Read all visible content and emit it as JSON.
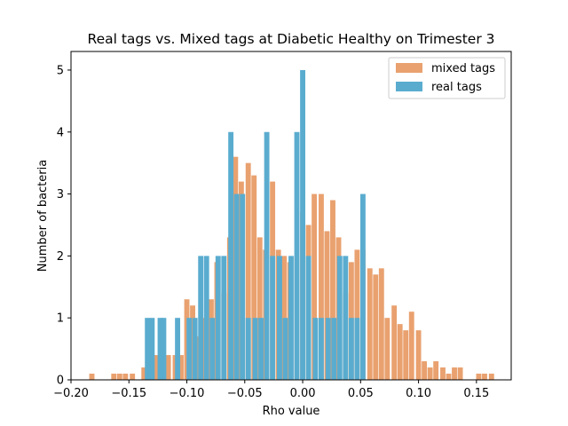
{
  "chart_data": {
    "type": "bar",
    "title": "Real tags vs. Mixed tags at Diabetic Healthy on Trimester 3",
    "xlabel": "Rho value",
    "ylabel": "Number of bacteria",
    "xlim": [
      -0.2,
      0.18
    ],
    "ylim": [
      0,
      5.3
    ],
    "xticks": [
      "−0.20",
      "−0.15",
      "−0.10",
      "−0.05",
      "0.00",
      "0.05",
      "0.10",
      "0.15"
    ],
    "xtick_values": [
      -0.2,
      -0.15,
      -0.1,
      -0.05,
      0.0,
      0.05,
      0.1,
      0.15
    ],
    "yticks": [
      "0",
      "1",
      "2",
      "3",
      "4",
      "5"
    ],
    "ytick_values": [
      0,
      1,
      2,
      3,
      4,
      5
    ],
    "bar_width": 0.0045,
    "legend_position": "top-right",
    "series": [
      {
        "name": "mixed tags",
        "color": "#e9a16f",
        "x": [
          -0.182,
          -0.163,
          -0.158,
          -0.153,
          -0.147,
          -0.142,
          -0.137,
          -0.132,
          -0.126,
          -0.121,
          -0.116,
          -0.11,
          -0.105,
          -0.1,
          -0.095,
          -0.089,
          -0.084,
          -0.079,
          -0.074,
          -0.068,
          -0.063,
          -0.058,
          -0.053,
          -0.047,
          -0.042,
          -0.037,
          -0.032,
          -0.026,
          -0.021,
          -0.016,
          -0.011,
          -0.005,
          0.0,
          0.005,
          0.01,
          0.016,
          0.021,
          0.026,
          0.031,
          0.037,
          0.042,
          0.047,
          0.052,
          0.058,
          0.063,
          0.068,
          0.073,
          0.079,
          0.084,
          0.089,
          0.094,
          0.1,
          0.105,
          0.11,
          0.115,
          0.121,
          0.126,
          0.131,
          0.136,
          0.142,
          0.147,
          0.152,
          0.157,
          0.163,
          0.168
        ],
        "values": [
          0.1,
          0.1,
          0.1,
          0.1,
          0.1,
          0.0,
          0.2,
          0.5,
          0.4,
          0.4,
          0.4,
          0.4,
          0.4,
          1.3,
          1.2,
          0.7,
          1.0,
          1.3,
          1.9,
          1.4,
          2.3,
          3.6,
          3.2,
          3.5,
          3.3,
          2.3,
          2.1,
          3.2,
          2.1,
          2.0,
          1.9,
          2.0,
          2.7,
          2.5,
          3.0,
          3.0,
          2.4,
          2.9,
          2.3,
          1.4,
          1.9,
          2.1,
          2.1,
          1.8,
          1.7,
          1.8,
          1.0,
          1.2,
          0.9,
          0.8,
          1.1,
          0.8,
          0.3,
          0.2,
          0.3,
          0.2,
          0.1,
          0.2,
          0.2,
          0.0,
          0.0,
          0.1,
          0.1,
          0.1,
          0.0
        ]
      },
      {
        "name": "real tags",
        "color": "#5aaccf",
        "x": [
          -0.134,
          -0.123,
          -0.108,
          -0.098,
          -0.088,
          -0.073,
          -0.062,
          -0.052,
          -0.041,
          -0.031,
          -0.02,
          -0.01,
          0.0,
          0.011,
          0.022,
          0.032,
          0.042,
          0.052
        ],
        "values": [
          1,
          1,
          1,
          1,
          2,
          2,
          4,
          3,
          1,
          4,
          2,
          2,
          5,
          1,
          1,
          2,
          1,
          3
        ]
      }
    ],
    "extra_real": [
      {
        "x": -0.13,
        "v": 1
      },
      {
        "x": -0.12,
        "v": 1
      },
      {
        "x": -0.093,
        "v": 1
      },
      {
        "x": -0.083,
        "v": 2
      },
      {
        "x": -0.078,
        "v": 1
      },
      {
        "x": -0.068,
        "v": 2
      },
      {
        "x": -0.057,
        "v": 3
      },
      {
        "x": -0.047,
        "v": 1
      },
      {
        "x": -0.036,
        "v": 1
      },
      {
        "x": -0.026,
        "v": 2
      },
      {
        "x": -0.015,
        "v": 1
      },
      {
        "x": -0.005,
        "v": 4
      },
      {
        "x": 0.005,
        "v": 2
      },
      {
        "x": 0.016,
        "v": 1
      },
      {
        "x": 0.027,
        "v": 1
      },
      {
        "x": 0.037,
        "v": 2
      },
      {
        "x": 0.047,
        "v": 1
      }
    ]
  }
}
